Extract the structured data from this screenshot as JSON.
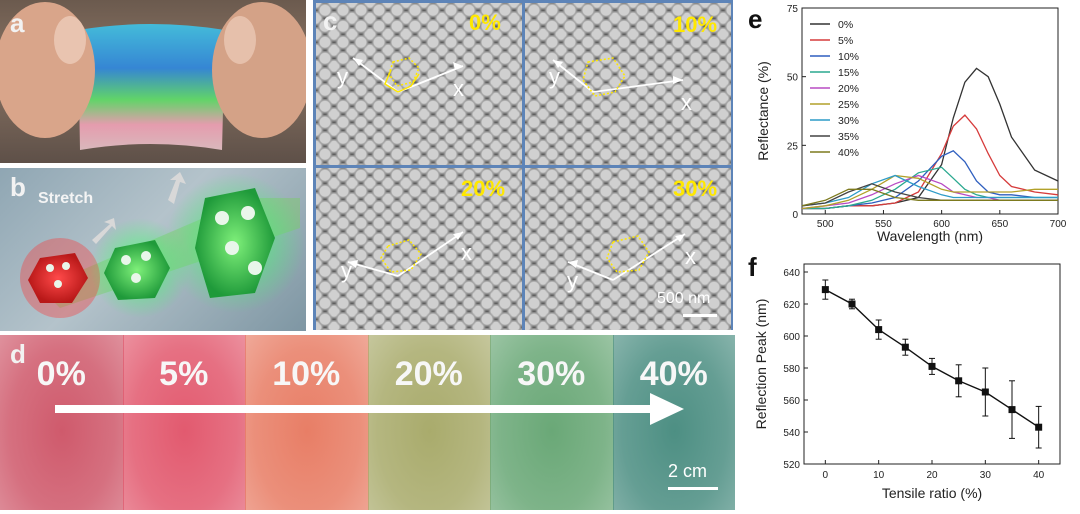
{
  "figure": {
    "panel_a": {
      "label": "a"
    },
    "panel_b": {
      "label": "b",
      "text": "Stretch"
    },
    "panel_c": {
      "label": "c",
      "scale_bar": "500 nm",
      "axis_x": "x",
      "axis_y": "y",
      "images": [
        {
          "strain": "0%"
        },
        {
          "strain": "10%"
        },
        {
          "strain": "20%"
        },
        {
          "strain": "30%"
        }
      ]
    },
    "panel_d": {
      "label": "d",
      "scale_bar": "2 cm",
      "segments": [
        {
          "label": "0%",
          "color": "#cf5a6c"
        },
        {
          "label": "5%",
          "color": "#e25a6f"
        },
        {
          "label": "10%",
          "color": "#e87e66"
        },
        {
          "label": "20%",
          "color": "#a9ab6c"
        },
        {
          "label": "30%",
          "color": "#6aa877"
        },
        {
          "label": "40%",
          "color": "#4d8f83"
        }
      ]
    },
    "panel_e": {
      "label": "e"
    },
    "panel_f": {
      "label": "f"
    }
  },
  "chart_data": [
    {
      "type": "line",
      "xlabel": "Wavelength (nm)",
      "ylabel": "Reflectance (%)",
      "xlim": [
        480,
        700
      ],
      "ylim": [
        0,
        75
      ],
      "xticks": [
        500,
        550,
        600,
        650,
        700
      ],
      "yticks": [
        0,
        25,
        50,
        75
      ],
      "legend_position": "top-left",
      "x": [
        480,
        500,
        520,
        540,
        560,
        580,
        600,
        610,
        620,
        630,
        640,
        650,
        660,
        680,
        700
      ],
      "series": [
        {
          "name": "0%",
          "color": "#333333",
          "values": [
            2,
            2,
            3,
            3,
            4,
            6,
            18,
            35,
            48,
            53,
            50,
            40,
            28,
            16,
            12
          ]
        },
        {
          "name": "5%",
          "color": "#d63b3b",
          "values": [
            2,
            2,
            3,
            3,
            4,
            8,
            22,
            32,
            36,
            31,
            22,
            14,
            10,
            8,
            7
          ]
        },
        {
          "name": "10%",
          "color": "#2f5fbf",
          "values": [
            2,
            2,
            3,
            4,
            6,
            12,
            21,
            23,
            19,
            12,
            8,
            7,
            7,
            6,
            6
          ]
        },
        {
          "name": "15%",
          "color": "#2aa88f",
          "values": [
            2,
            2,
            3,
            5,
            9,
            15,
            17,
            13,
            9,
            7,
            6,
            6,
            6,
            6,
            6
          ]
        },
        {
          "name": "20%",
          "color": "#b84bc4",
          "values": [
            2,
            3,
            4,
            7,
            11,
            14,
            11,
            8,
            7,
            6,
            6,
            5,
            5,
            5,
            5
          ]
        },
        {
          "name": "25%",
          "color": "#b2a12a",
          "values": [
            2,
            3,
            5,
            9,
            14,
            13,
            9,
            8,
            8,
            8,
            8,
            8,
            8,
            9,
            9
          ]
        },
        {
          "name": "30%",
          "color": "#2d9bc7",
          "values": [
            3,
            4,
            6,
            11,
            14,
            10,
            7,
            6,
            6,
            6,
            6,
            6,
            6,
            6,
            6
          ]
        },
        {
          "name": "35%",
          "color": "#444444",
          "values": [
            3,
            4,
            8,
            11,
            8,
            6,
            5,
            5,
            5,
            5,
            5,
            5,
            5,
            5,
            5
          ]
        },
        {
          "name": "40%",
          "color": "#7d7a1e",
          "values": [
            3,
            5,
            9,
            9,
            6,
            5,
            5,
            5,
            5,
            5,
            5,
            5,
            5,
            5,
            5
          ]
        }
      ]
    },
    {
      "type": "line",
      "xlabel": "Tensile ratio (%)",
      "ylabel": "Reflection Peak (nm)",
      "xlim": [
        -4,
        44
      ],
      "ylim": [
        520,
        645
      ],
      "xticks": [
        0,
        10,
        20,
        30,
        40
      ],
      "yticks": [
        520,
        540,
        560,
        580,
        600,
        620,
        640
      ],
      "series": [
        {
          "x": [
            0,
            5,
            10,
            15,
            20,
            25,
            30,
            35,
            40
          ],
          "values": [
            629,
            620,
            604,
            593,
            581,
            572,
            565,
            554,
            543
          ],
          "error": [
            6,
            3,
            6,
            5,
            5,
            10,
            15,
            18,
            13
          ]
        }
      ]
    }
  ]
}
